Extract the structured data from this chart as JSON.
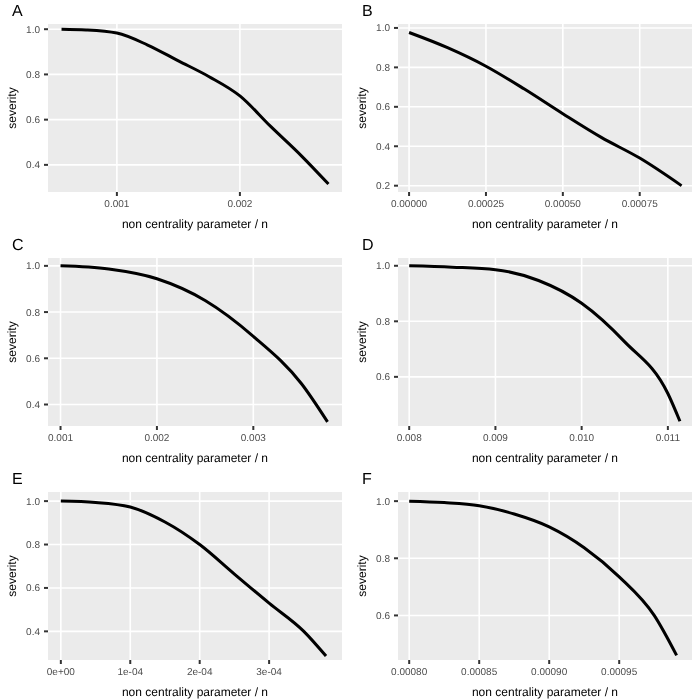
{
  "chart_data": [
    {
      "type": "line",
      "title": "A",
      "xlabel": "non centrality parameter / n",
      "ylabel": "severity",
      "grid": true,
      "xlim": [
        0.00044,
        0.00283
      ],
      "ylim": [
        0.28,
        1.023
      ],
      "xticks": [
        0.001,
        0.002
      ],
      "yticks": [
        {
          "value": 0.4,
          "label": "0.4"
        },
        {
          "value": 0.6,
          "label": "0.6"
        },
        {
          "value": 0.8,
          "label": "0.8"
        },
        {
          "value": 1.0,
          "label": "1.0"
        }
      ],
      "series": [
        {
          "color": "#000000",
          "x": [
            0.00055,
            0.00075,
            0.001,
            0.00125,
            0.0015,
            0.00175,
            0.002,
            0.00225,
            0.0025,
            0.00272
          ],
          "values": [
            1.0,
            0.997,
            0.983,
            0.93,
            0.86,
            0.79,
            0.705,
            0.57,
            0.44,
            0.315
          ]
        }
      ]
    },
    {
      "type": "line",
      "title": "B",
      "xlabel": "non centrality parameter / n",
      "ylabel": "severity",
      "grid": true,
      "xlim": [
        -3.6e-05,
        0.00092
      ],
      "ylim": [
        0.168,
        1.02
      ],
      "xticks": [
        {
          "value": 0,
          "label": "0.00000"
        },
        {
          "value": 0.00025,
          "label": "0.00025"
        },
        {
          "value": 0.0005,
          "label": "0.00050"
        },
        {
          "value": 0.00075,
          "label": "0.00075"
        }
      ],
      "yticks": [
        {
          "value": 0.2,
          "label": "0.2"
        },
        {
          "value": 0.4,
          "label": "0.4"
        },
        {
          "value": 0.6,
          "label": "0.6"
        },
        {
          "value": 0.8,
          "label": "0.8"
        },
        {
          "value": 1.0,
          "label": "1.0"
        }
      ],
      "series": [
        {
          "color": "#000000",
          "x": [
            0,
            0.000125,
            0.00025,
            0.000375,
            0.0005,
            0.000625,
            0.00075,
            0.000886
          ],
          "values": [
            0.977,
            0.9,
            0.806,
            0.69,
            0.565,
            0.445,
            0.34,
            0.2
          ]
        }
      ]
    },
    {
      "type": "line",
      "title": "C",
      "xlabel": "non centrality parameter / n",
      "ylabel": "severity",
      "grid": true,
      "xlim": [
        0.00087,
        0.00392
      ],
      "ylim": [
        0.307,
        1.034
      ],
      "xticks": [
        0.001,
        0.002,
        0.003
      ],
      "yticks": [
        {
          "value": 0.4,
          "label": "0.4"
        },
        {
          "value": 0.6,
          "label": "0.6"
        },
        {
          "value": 0.8,
          "label": "0.8"
        },
        {
          "value": 1.0,
          "label": "1.0"
        }
      ],
      "series": [
        {
          "color": "#000000",
          "x": [
            0.001,
            0.0015,
            0.002,
            0.0025,
            0.003,
            0.0035,
            0.00377
          ],
          "values": [
            1.0,
            0.986,
            0.944,
            0.85,
            0.695,
            0.49,
            0.325
          ]
        }
      ]
    },
    {
      "type": "line",
      "title": "D",
      "xlabel": "non centrality parameter / n",
      "ylabel": "severity",
      "grid": true,
      "xlim": [
        0.00787,
        0.01128
      ],
      "ylim": [
        0.423,
        1.028
      ],
      "xticks": [
        {
          "value": 0.008,
          "label": "0.008"
        },
        {
          "value": 0.009,
          "label": "0.009"
        },
        {
          "value": 0.01,
          "label": "0.010"
        },
        {
          "value": 0.011,
          "label": "0.011"
        }
      ],
      "yticks": [
        {
          "value": 0.6,
          "label": "0.6"
        },
        {
          "value": 0.8,
          "label": "0.8"
        },
        {
          "value": 1.0,
          "label": "1.0"
        }
      ],
      "series": [
        {
          "color": "#000000",
          "x": [
            0.008,
            0.0085,
            0.009,
            0.0095,
            0.01,
            0.0105,
            0.011,
            0.01114
          ],
          "values": [
            1.0,
            0.995,
            0.986,
            0.947,
            0.865,
            0.726,
            0.54,
            0.44
          ]
        }
      ]
    },
    {
      "type": "line",
      "title": "E",
      "xlabel": "non centrality parameter / n",
      "ylabel": "severity",
      "grid": true,
      "xlim": [
        -1.85e-05,
        0.000405
      ],
      "ylim": [
        0.268,
        1.042
      ],
      "xticks": [
        {
          "value": 0,
          "label": "0e+00"
        },
        {
          "value": 0.0001,
          "label": "1e-04"
        },
        {
          "value": 0.0002,
          "label": "2e-04"
        },
        {
          "value": 0.0003,
          "label": "3e-04"
        }
      ],
      "yticks": [
        {
          "value": 0.4,
          "label": "0.4"
        },
        {
          "value": 0.6,
          "label": "0.6"
        },
        {
          "value": 0.8,
          "label": "0.8"
        },
        {
          "value": 1.0,
          "label": "1.0"
        }
      ],
      "series": [
        {
          "color": "#000000",
          "x": [
            0,
            5e-05,
            0.0001,
            0.00015,
            0.0002,
            0.00025,
            0.0003,
            0.00035,
            0.000382
          ],
          "values": [
            1.0,
            0.994,
            0.973,
            0.904,
            0.8,
            0.664,
            0.53,
            0.4,
            0.286
          ]
        }
      ]
    },
    {
      "type": "line",
      "title": "F",
      "xlabel": "non centrality parameter / n",
      "ylabel": "severity",
      "grid": true,
      "xlim": [
        0.000792,
        0.001002
      ],
      "ylim": [
        0.444,
        1.032
      ],
      "xticks": [
        {
          "value": 0.0008,
          "label": "0.00080"
        },
        {
          "value": 0.00085,
          "label": "0.00085"
        },
        {
          "value": 0.0009,
          "label": "0.00090"
        },
        {
          "value": 0.00095,
          "label": "0.00095"
        }
      ],
      "yticks": [
        {
          "value": 0.6,
          "label": "0.6"
        },
        {
          "value": 0.8,
          "label": "0.8"
        },
        {
          "value": 1.0,
          "label": "1.0"
        }
      ],
      "series": [
        {
          "color": "#000000",
          "x": [
            0.0008,
            0.000825,
            0.00085,
            0.000875,
            0.0009,
            0.000925,
            0.00095,
            0.000975,
            0.000991
          ],
          "values": [
            1.0,
            0.995,
            0.984,
            0.955,
            0.91,
            0.837,
            0.735,
            0.6,
            0.46
          ]
        }
      ]
    }
  ]
}
